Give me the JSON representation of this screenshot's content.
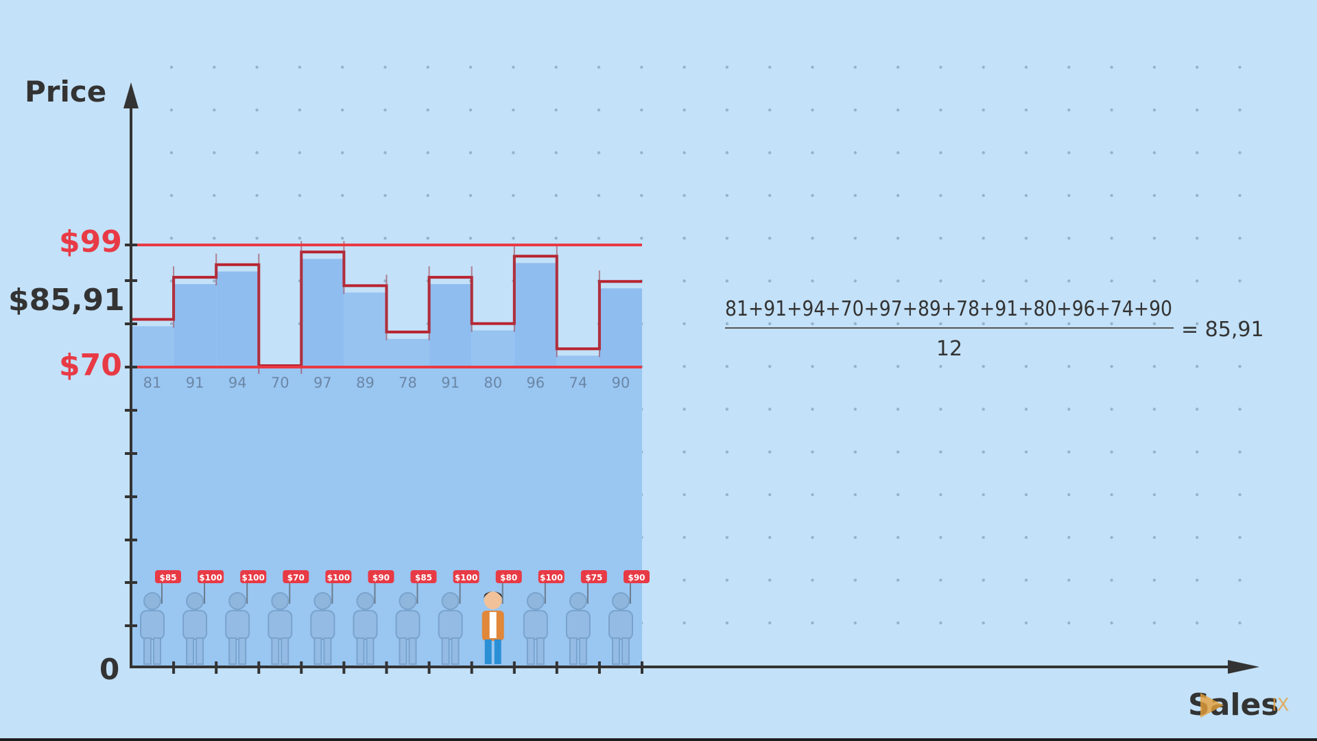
{
  "chart_data": {
    "type": "bar",
    "title": "",
    "ylabel": "Price",
    "xlabel": "Sales",
    "y_zero_label": "0",
    "categories": [
      "81",
      "91",
      "94",
      "70",
      "97",
      "89",
      "78",
      "91",
      "80",
      "96",
      "74",
      "90"
    ],
    "values": [
      81,
      91,
      94,
      70,
      97,
      89,
      78,
      91,
      80,
      96,
      74,
      90
    ],
    "sign_prices": [
      "$85",
      "$100",
      "$100",
      "$70",
      "$100",
      "$90",
      "$85",
      "$100",
      "$80",
      "$100",
      "$75",
      "$90"
    ],
    "highlighted_customer_index": 8,
    "reference_lines": [
      {
        "label": "$99",
        "value": 99,
        "color": "#e83a45"
      },
      {
        "label": "$70",
        "value": 70,
        "color": "#e83a45"
      }
    ],
    "average": {
      "label": "$85,91",
      "value": 85.91
    },
    "grid": "dotted",
    "ylim": [
      0,
      110
    ]
  },
  "equation": {
    "numerator": "81+91+94+70+97+89+78+91+80+96+74+90",
    "denominator": "12",
    "result": "= 85,91"
  },
  "watermark": {
    "text": "IX"
  },
  "colors": {
    "background": "#c3e1f8",
    "bar_fill": "#9ac6f2",
    "accent_red": "#e83a45",
    "axis": "#333333"
  }
}
